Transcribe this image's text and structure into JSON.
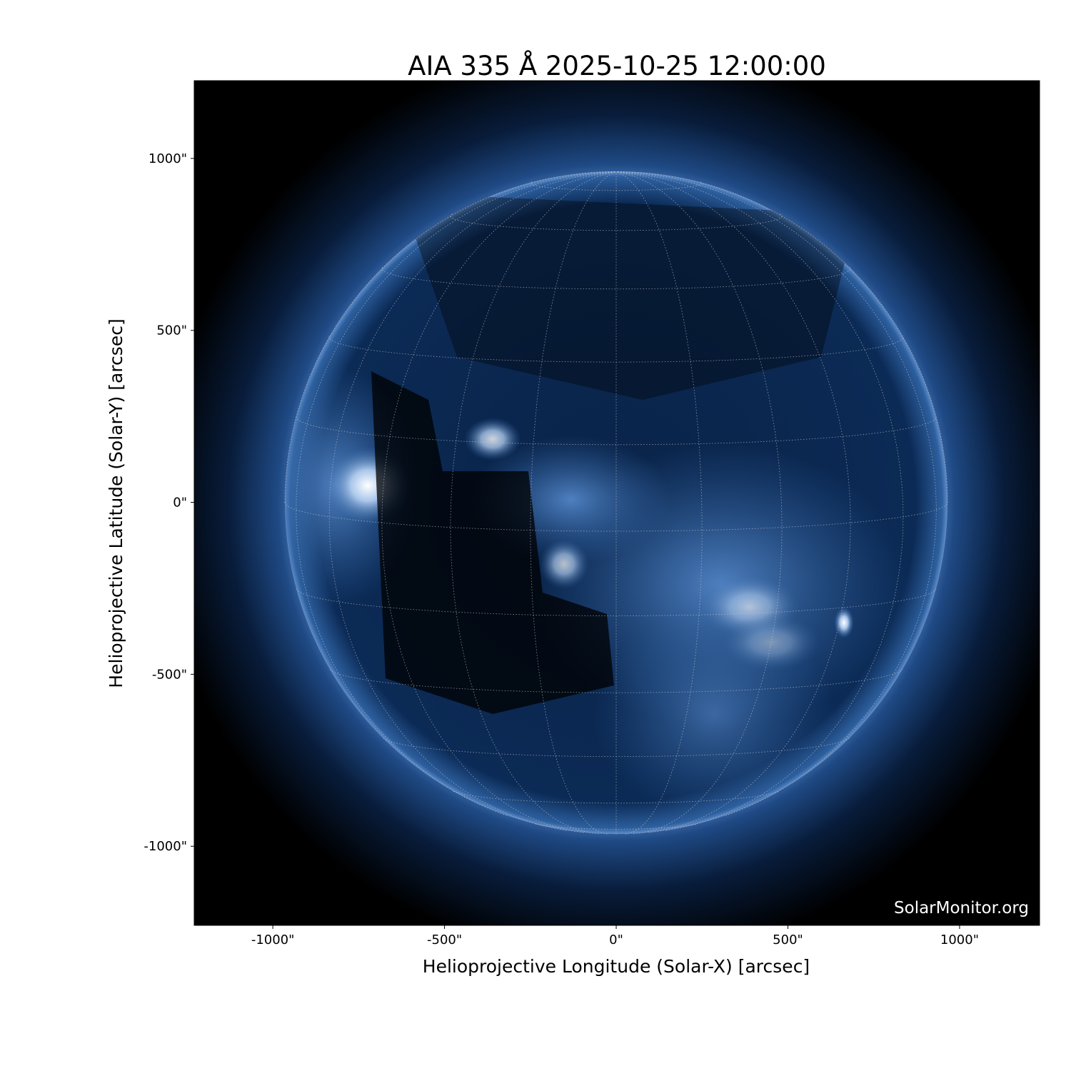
{
  "chart_data": {
    "type": "image",
    "title": "AIA 335 Å 2025-10-25 12:00:00",
    "xlabel": "Helioprojective Longitude (Solar-X) [arcsec]",
    "ylabel": "Helioprojective Latitude (Solar-Y) [arcsec]",
    "xlim": [
      -1229,
      1233
    ],
    "ylim": [
      -1230,
      1226
    ],
    "xticks": [
      -1000,
      -500,
      0,
      500,
      1000
    ],
    "xtick_labels": [
      "-1000\"",
      "-500\"",
      "0\"",
      "500\"",
      "1000\""
    ],
    "yticks": [
      1000,
      500,
      0,
      -500,
      -1000
    ],
    "ytick_labels": [
      "1000\"",
      "500\"",
      "0\"",
      "-500\"",
      "-1000\""
    ],
    "grid": true,
    "watermark": "SolarMonitor.org",
    "colormap": [
      "#000000",
      "#0b2a55",
      "#2f63a3",
      "#8fb4e0",
      "#ffffff"
    ]
  }
}
